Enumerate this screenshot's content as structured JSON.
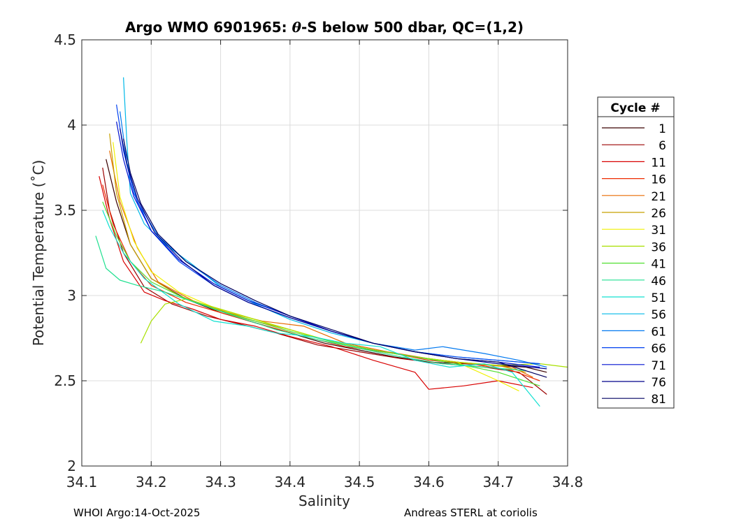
{
  "chart_data": {
    "type": "line",
    "title_parts": [
      "Argo WMO 6901965: ",
      "θ",
      "-S below 500 dbar,  QC=(1,2)"
    ],
    "xlabel": "Salinity",
    "ylabel": "Potential Temperature (˚C)",
    "xlim": [
      34.1,
      34.8
    ],
    "ylim": [
      2,
      4.5
    ],
    "xticks": [
      "34.1",
      "34.2",
      "34.3",
      "34.4",
      "34.5",
      "34.6",
      "34.7",
      "34.8"
    ],
    "yticks": [
      "2",
      "2.5",
      "3",
      "3.5",
      "4",
      "4.5"
    ],
    "grid": true,
    "legend_title": "Cycle #",
    "legend_placement": "right",
    "legend": [
      {
        "label": "1",
        "color": "#3a0000"
      },
      {
        "label": "6",
        "color": "#9b0000"
      },
      {
        "label": "11",
        "color": "#d80000"
      },
      {
        "label": "16",
        "color": "#ee2a00"
      },
      {
        "label": "21",
        "color": "#e86a00"
      },
      {
        "label": "26",
        "color": "#c8a000"
      },
      {
        "label": "31",
        "color": "#f0f000"
      },
      {
        "label": "36",
        "color": "#a8e000"
      },
      {
        "label": "41",
        "color": "#50e030"
      },
      {
        "label": "46",
        "color": "#20e090"
      },
      {
        "label": "51",
        "color": "#10e0d0"
      },
      {
        "label": "56",
        "color": "#00b8e8"
      },
      {
        "label": "61",
        "color": "#0078f0"
      },
      {
        "label": "66",
        "color": "#0040f0"
      },
      {
        "label": "71",
        "color": "#0010d0"
      },
      {
        "label": "76",
        "color": "#00008a"
      },
      {
        "label": "81",
        "color": "#000060"
      }
    ],
    "series": [
      {
        "name": "1",
        "x": [
          34.135,
          34.15,
          34.17,
          34.2,
          34.25,
          34.3,
          34.35,
          34.4,
          34.45,
          34.5,
          34.55,
          34.6,
          34.65,
          34.7,
          34.74,
          34.77
        ],
        "y": [
          3.8,
          3.55,
          3.3,
          3.1,
          2.98,
          2.9,
          2.84,
          2.78,
          2.72,
          2.68,
          2.64,
          2.61,
          2.6,
          2.59,
          2.58,
          2.55
        ]
      },
      {
        "name": "6",
        "x": [
          34.13,
          34.14,
          34.16,
          34.19,
          34.23,
          34.28,
          34.33,
          34.38,
          34.44,
          34.5,
          34.56,
          34.62,
          34.68,
          34.73,
          34.77
        ],
        "y": [
          3.75,
          3.5,
          3.25,
          3.05,
          2.95,
          2.88,
          2.83,
          2.78,
          2.71,
          2.67,
          2.63,
          2.6,
          2.58,
          2.55,
          2.42
        ]
      },
      {
        "name": "11",
        "x": [
          34.125,
          34.14,
          34.16,
          34.19,
          34.22,
          34.26,
          34.3,
          34.35,
          34.4,
          34.46,
          34.52,
          34.58,
          34.6,
          34.65,
          34.7,
          34.75
        ],
        "y": [
          3.7,
          3.45,
          3.2,
          3.02,
          2.97,
          2.92,
          2.86,
          2.82,
          2.76,
          2.7,
          2.62,
          2.55,
          2.45,
          2.47,
          2.5,
          2.46
        ]
      },
      {
        "name": "16",
        "x": [
          34.13,
          34.145,
          34.17,
          34.2,
          34.25,
          34.3,
          34.35,
          34.42,
          34.48,
          34.55,
          34.6,
          34.66,
          34.72,
          34.76
        ],
        "y": [
          3.65,
          3.42,
          3.2,
          3.06,
          2.96,
          2.9,
          2.84,
          2.76,
          2.7,
          2.66,
          2.62,
          2.6,
          2.56,
          2.5
        ]
      },
      {
        "name": "21",
        "x": [
          34.14,
          34.155,
          34.18,
          34.21,
          34.26,
          34.31,
          34.36,
          34.42,
          34.48,
          34.54,
          34.6,
          34.66,
          34.72,
          34.75
        ],
        "y": [
          3.85,
          3.55,
          3.28,
          3.08,
          2.97,
          2.9,
          2.85,
          2.82,
          2.72,
          2.67,
          2.63,
          2.6,
          2.58,
          2.52
        ]
      },
      {
        "name": "26",
        "x": [
          34.14,
          34.15,
          34.17,
          34.2,
          34.24,
          34.29,
          34.34,
          34.4,
          34.46,
          34.52,
          34.58,
          34.64,
          34.7,
          34.74
        ],
        "y": [
          3.95,
          3.6,
          3.3,
          3.1,
          3.0,
          2.92,
          2.86,
          2.8,
          2.73,
          2.68,
          2.64,
          2.61,
          2.59,
          2.55
        ]
      },
      {
        "name": "31",
        "x": [
          34.145,
          34.155,
          34.175,
          34.2,
          34.24,
          34.29,
          34.34,
          34.4,
          34.46,
          34.52,
          34.58,
          34.64,
          34.7,
          34.73
        ],
        "y": [
          3.9,
          3.58,
          3.32,
          3.14,
          3.02,
          2.93,
          2.87,
          2.8,
          2.73,
          2.68,
          2.64,
          2.61,
          2.5,
          2.44
        ]
      },
      {
        "name": "36",
        "x": [
          34.185,
          34.2,
          34.22,
          34.25,
          34.3,
          34.35,
          34.4,
          34.46,
          34.52,
          34.58,
          34.64,
          34.7,
          34.76,
          34.8
        ],
        "y": [
          2.72,
          2.85,
          2.95,
          2.98,
          2.92,
          2.86,
          2.8,
          2.73,
          2.68,
          2.64,
          2.61,
          2.59,
          2.6,
          2.58
        ]
      },
      {
        "name": "41",
        "x": [
          34.13,
          34.15,
          34.17,
          34.2,
          34.25,
          34.3,
          34.35,
          34.4,
          34.46,
          34.52,
          34.58,
          34.64,
          34.7,
          34.76
        ],
        "y": [
          3.55,
          3.35,
          3.2,
          3.08,
          2.98,
          2.91,
          2.85,
          2.79,
          2.73,
          2.68,
          2.64,
          2.6,
          2.55,
          2.47
        ]
      },
      {
        "name": "46",
        "x": [
          34.12,
          34.135,
          34.155,
          34.18,
          34.22,
          34.27,
          34.32,
          34.38,
          34.44,
          34.5,
          34.56,
          34.62,
          34.68,
          34.74
        ],
        "y": [
          3.35,
          3.16,
          3.09,
          3.06,
          3.02,
          2.95,
          2.88,
          2.8,
          2.74,
          2.69,
          2.64,
          2.6,
          2.58,
          2.56
        ]
      },
      {
        "name": "51",
        "x": [
          34.13,
          34.14,
          34.16,
          34.19,
          34.24,
          34.29,
          34.34,
          34.38,
          34.43,
          34.48,
          34.53,
          34.58,
          34.63,
          34.68,
          34.72,
          34.76
        ],
        "y": [
          3.5,
          3.4,
          3.25,
          3.1,
          2.95,
          2.85,
          2.82,
          2.78,
          2.76,
          2.72,
          2.7,
          2.62,
          2.58,
          2.6,
          2.55,
          2.35
        ]
      },
      {
        "name": "56",
        "x": [
          34.16,
          34.165,
          34.17,
          34.19,
          34.22,
          34.26,
          34.3,
          34.35,
          34.4,
          34.46,
          34.52,
          34.58,
          34.64,
          34.7,
          34.76
        ],
        "y": [
          4.28,
          3.9,
          3.6,
          3.42,
          3.3,
          3.18,
          3.05,
          2.95,
          2.86,
          2.78,
          2.72,
          2.67,
          2.64,
          2.62,
          2.6
        ]
      },
      {
        "name": "61",
        "x": [
          34.155,
          34.165,
          34.18,
          34.21,
          34.25,
          34.3,
          34.35,
          34.4,
          34.46,
          34.52,
          34.58,
          34.62,
          34.68,
          34.73,
          34.77
        ],
        "y": [
          4.08,
          3.78,
          3.55,
          3.35,
          3.2,
          3.06,
          2.96,
          2.88,
          2.79,
          2.72,
          2.68,
          2.7,
          2.66,
          2.62,
          2.58
        ]
      },
      {
        "name": "66",
        "x": [
          34.15,
          34.16,
          34.175,
          34.2,
          34.24,
          34.29,
          34.34,
          34.4,
          34.46,
          34.52,
          34.58,
          34.64,
          34.7,
          34.76
        ],
        "y": [
          4.12,
          3.85,
          3.6,
          3.38,
          3.2,
          3.06,
          2.96,
          2.87,
          2.79,
          2.72,
          2.67,
          2.64,
          2.62,
          2.6
        ]
      },
      {
        "name": "71",
        "x": [
          34.15,
          34.16,
          34.175,
          34.2,
          34.24,
          34.29,
          34.34,
          34.4,
          34.46,
          34.52,
          34.58,
          34.64,
          34.7,
          34.76
        ],
        "y": [
          4.02,
          3.8,
          3.58,
          3.38,
          3.21,
          3.07,
          2.97,
          2.88,
          2.79,
          2.72,
          2.67,
          2.63,
          2.61,
          2.58
        ]
      },
      {
        "name": "76",
        "x": [
          34.155,
          34.165,
          34.18,
          34.205,
          34.245,
          34.29,
          34.34,
          34.4,
          34.46,
          34.52,
          34.58,
          34.64,
          34.7,
          34.77
        ],
        "y": [
          3.98,
          3.77,
          3.57,
          3.37,
          3.2,
          3.06,
          2.96,
          2.87,
          2.79,
          2.72,
          2.67,
          2.63,
          2.6,
          2.57
        ]
      },
      {
        "name": "81",
        "x": [
          34.16,
          34.17,
          34.185,
          34.21,
          34.25,
          34.3,
          34.35,
          34.4,
          34.46,
          34.52,
          34.58,
          34.64,
          34.7,
          34.77
        ],
        "y": [
          3.92,
          3.72,
          3.54,
          3.36,
          3.2,
          3.07,
          2.97,
          2.88,
          2.8,
          2.72,
          2.67,
          2.63,
          2.61,
          2.52
        ]
      }
    ]
  },
  "footer": {
    "left": "WHOI Argo:14-Oct-2025",
    "right": "Andreas STERL at coriolis"
  }
}
